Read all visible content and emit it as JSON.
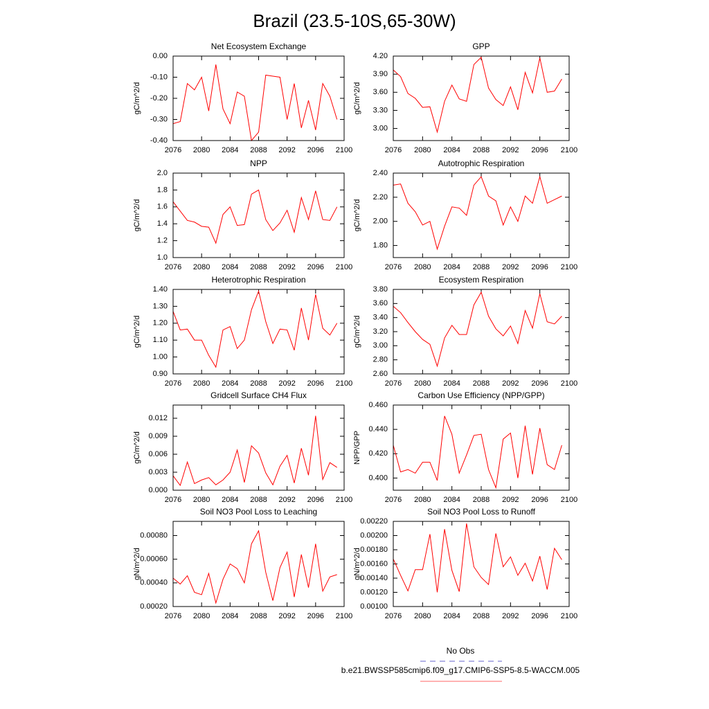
{
  "title": "Brazil (23.5-10S,65-30W)",
  "legend": [
    {
      "label": "No Obs",
      "color": "#6666cc",
      "dashed": true
    },
    {
      "label": "b.e21.BWSSP585cmip6.f09_g17.CMIP6-SSP5-8.5-WACCM.005",
      "color": "#ff6666",
      "dashed": false
    }
  ],
  "chart_data": [
    {
      "type": "line",
      "title": "Net Ecosystem Exchange",
      "ylabel": "gC/m^2/d",
      "color": "#ff0000",
      "x": [
        2076,
        2077,
        2078,
        2079,
        2080,
        2081,
        2082,
        2083,
        2084,
        2085,
        2086,
        2087,
        2088,
        2089,
        2090,
        2091,
        2092,
        2093,
        2094,
        2095,
        2096,
        2097,
        2098,
        2099
      ],
      "values": [
        -0.32,
        -0.31,
        -0.13,
        -0.16,
        -0.1,
        -0.26,
        -0.04,
        -0.25,
        -0.32,
        -0.17,
        -0.19,
        -0.4,
        -0.36,
        -0.09,
        -0.095,
        -0.1,
        -0.3,
        -0.13,
        -0.34,
        -0.21,
        -0.35,
        -0.13,
        -0.19,
        -0.3
      ],
      "xlim": [
        2076,
        2100
      ],
      "xticks": [
        2076,
        2080,
        2084,
        2088,
        2092,
        2096,
        2100
      ],
      "ylim": [
        -0.4,
        0
      ],
      "yticks": [
        {
          "value": -0.4,
          "label": "-0.40"
        },
        {
          "value": -0.3,
          "label": "-0.30"
        },
        {
          "value": -0.2,
          "label": "-0.20"
        },
        {
          "value": -0.1,
          "label": "-0.10"
        },
        {
          "value": 0,
          "label": "0.00"
        }
      ]
    },
    {
      "type": "line",
      "title": "GPP",
      "ylabel": "gC/m^2/d",
      "color": "#ff0000",
      "x": [
        2076,
        2077,
        2078,
        2079,
        2080,
        2081,
        2082,
        2083,
        2084,
        2085,
        2086,
        2087,
        2088,
        2089,
        2090,
        2091,
        2092,
        2093,
        2094,
        2095,
        2096,
        2097,
        2098,
        2099
      ],
      "values": [
        3.97,
        3.86,
        3.58,
        3.5,
        3.35,
        3.36,
        2.94,
        3.45,
        3.72,
        3.49,
        3.45,
        4.06,
        4.18,
        3.67,
        3.48,
        3.38,
        3.69,
        3.31,
        3.93,
        3.59,
        4.17,
        3.6,
        3.62,
        3.82
      ],
      "xlim": [
        2076,
        2100
      ],
      "xticks": [
        2076,
        2080,
        2084,
        2088,
        2092,
        2096,
        2100
      ],
      "ylim": [
        2.8,
        4.2
      ],
      "yticks": [
        {
          "value": 3.0,
          "label": "3.00"
        },
        {
          "value": 3.3,
          "label": "3.30"
        },
        {
          "value": 3.6,
          "label": "3.60"
        },
        {
          "value": 3.9,
          "label": "3.90"
        },
        {
          "value": 4.2,
          "label": "4.20"
        }
      ]
    },
    {
      "type": "line",
      "title": "NPP",
      "ylabel": "gC/m^2/d",
      "color": "#ff0000",
      "x": [
        2076,
        2077,
        2078,
        2079,
        2080,
        2081,
        2082,
        2083,
        2084,
        2085,
        2086,
        2087,
        2088,
        2089,
        2090,
        2091,
        2092,
        2093,
        2094,
        2095,
        2096,
        2097,
        2098,
        2099
      ],
      "values": [
        1.66,
        1.55,
        1.44,
        1.42,
        1.37,
        1.36,
        1.17,
        1.51,
        1.6,
        1.38,
        1.39,
        1.75,
        1.8,
        1.45,
        1.32,
        1.41,
        1.56,
        1.3,
        1.71,
        1.45,
        1.79,
        1.45,
        1.44,
        1.6
      ],
      "xlim": [
        2076,
        2100
      ],
      "xticks": [
        2076,
        2080,
        2084,
        2088,
        2092,
        2096,
        2100
      ],
      "ylim": [
        1.0,
        2.0
      ],
      "yticks": [
        {
          "value": 1.0,
          "label": "1.0"
        },
        1.2,
        1.4,
        1.6,
        1.8,
        {
          "value": 2.0,
          "label": "2.0"
        }
      ]
    },
    {
      "type": "line",
      "title": "Autotrophic Respiration",
      "ylabel": "gC/m^2/d",
      "color": "#ff0000",
      "x": [
        2076,
        2077,
        2078,
        2079,
        2080,
        2081,
        2082,
        2083,
        2084,
        2085,
        2086,
        2087,
        2088,
        2089,
        2090,
        2091,
        2092,
        2093,
        2094,
        2095,
        2096,
        2097,
        2098,
        2099
      ],
      "values": [
        2.3,
        2.31,
        2.15,
        2.08,
        1.97,
        2.0,
        1.77,
        1.96,
        2.12,
        2.11,
        2.05,
        2.3,
        2.37,
        2.21,
        2.17,
        1.97,
        2.12,
        2.0,
        2.21,
        2.15,
        2.37,
        2.15,
        2.18,
        2.21
      ],
      "xlim": [
        2076,
        2100
      ],
      "xticks": [
        2076,
        2080,
        2084,
        2088,
        2092,
        2096,
        2100
      ],
      "ylim": [
        1.7,
        2.4
      ],
      "yticks": [
        {
          "value": 1.8,
          "label": "1.80"
        },
        {
          "value": 2.0,
          "label": "2.00"
        },
        {
          "value": 2.2,
          "label": "2.20"
        },
        {
          "value": 2.4,
          "label": "2.40"
        }
      ]
    },
    {
      "type": "line",
      "title": "Heterotrophic Respiration",
      "ylabel": "gC/m^2/d",
      "color": "#ff0000",
      "x": [
        2076,
        2077,
        2078,
        2079,
        2080,
        2081,
        2082,
        2083,
        2084,
        2085,
        2086,
        2087,
        2088,
        2089,
        2090,
        2091,
        2092,
        2093,
        2094,
        2095,
        2096,
        2097,
        2098,
        2099
      ],
      "values": [
        1.27,
        1.16,
        1.165,
        1.1,
        1.1,
        1.01,
        0.94,
        1.16,
        1.18,
        1.05,
        1.1,
        1.28,
        1.39,
        1.21,
        1.08,
        1.165,
        1.16,
        1.04,
        1.29,
        1.1,
        1.37,
        1.17,
        1.13,
        1.2
      ],
      "xlim": [
        2076,
        2100
      ],
      "xticks": [
        2076,
        2080,
        2084,
        2088,
        2092,
        2096,
        2100
      ],
      "ylim": [
        0.9,
        1.4
      ],
      "yticks": [
        {
          "value": 0.9,
          "label": "0.90"
        },
        {
          "value": 1.0,
          "label": "1.00"
        },
        {
          "value": 1.1,
          "label": "1.10"
        },
        {
          "value": 1.2,
          "label": "1.20"
        },
        {
          "value": 1.3,
          "label": "1.30"
        },
        {
          "value": 1.4,
          "label": "1.40"
        }
      ]
    },
    {
      "type": "line",
      "title": "Ecosystem Respiration",
      "ylabel": "gC/m^2/d",
      "color": "#ff0000",
      "x": [
        2076,
        2077,
        2078,
        2079,
        2080,
        2081,
        2082,
        2083,
        2084,
        2085,
        2086,
        2087,
        2088,
        2089,
        2090,
        2091,
        2092,
        2093,
        2094,
        2095,
        2096,
        2097,
        2098,
        2099
      ],
      "values": [
        3.56,
        3.47,
        3.33,
        3.2,
        3.09,
        3.02,
        2.71,
        3.11,
        3.29,
        3.16,
        3.16,
        3.58,
        3.76,
        3.42,
        3.24,
        3.14,
        3.28,
        3.03,
        3.5,
        3.25,
        3.74,
        3.34,
        3.31,
        3.42
      ],
      "xlim": [
        2076,
        2100
      ],
      "xticks": [
        2076,
        2080,
        2084,
        2088,
        2092,
        2096,
        2100
      ],
      "ylim": [
        2.6,
        3.8
      ],
      "yticks": [
        {
          "value": 2.6,
          "label": "2.60"
        },
        {
          "value": 2.8,
          "label": "2.80"
        },
        {
          "value": 3.0,
          "label": "3.00"
        },
        {
          "value": 3.2,
          "label": "3.20"
        },
        {
          "value": 3.4,
          "label": "3.40"
        },
        {
          "value": 3.6,
          "label": "3.60"
        },
        {
          "value": 3.8,
          "label": "3.80"
        }
      ]
    },
    {
      "type": "line",
      "title": "Gridcell Surface CH4 Flux",
      "ylabel": "gC/m^2/d",
      "color": "#ff0000",
      "x": [
        2076,
        2077,
        2078,
        2079,
        2080,
        2081,
        2082,
        2083,
        2084,
        2085,
        2086,
        2087,
        2088,
        2089,
        2090,
        2091,
        2092,
        2093,
        2094,
        2095,
        2096,
        2097,
        2098,
        2099
      ],
      "values": [
        0.0024,
        0.0008,
        0.0047,
        0.0011,
        0.0017,
        0.0021,
        0.0009,
        0.0017,
        0.003,
        0.0067,
        0.0013,
        0.0074,
        0.0062,
        0.0029,
        0.0009,
        0.004,
        0.0058,
        0.0012,
        0.007,
        0.0025,
        0.0124,
        0.0018,
        0.0046,
        0.0038
      ],
      "xlim": [
        2076,
        2100
      ],
      "xticks": [
        2076,
        2080,
        2084,
        2088,
        2092,
        2096,
        2100
      ],
      "ylim": [
        0,
        0.0142
      ],
      "yticks": [
        {
          "value": 0,
          "label": "0.000"
        },
        0.003,
        0.006,
        0.009,
        0.012
      ]
    },
    {
      "type": "line",
      "title": "Carbon Use Efficiency (NPP/GPP)",
      "ylabel": "NPP/GPP",
      "color": "#ff0000",
      "x": [
        2076,
        2077,
        2078,
        2079,
        2080,
        2081,
        2082,
        2083,
        2084,
        2085,
        2086,
        2087,
        2088,
        2089,
        2090,
        2091,
        2092,
        2093,
        2094,
        2095,
        2096,
        2097,
        2098,
        2099
      ],
      "values": [
        0.427,
        0.405,
        0.407,
        0.404,
        0.413,
        0.413,
        0.398,
        0.451,
        0.436,
        0.404,
        0.419,
        0.435,
        0.436,
        0.407,
        0.392,
        0.432,
        0.437,
        0.4,
        0.443,
        0.403,
        0.441,
        0.411,
        0.407,
        0.427
      ],
      "xlim": [
        2076,
        2100
      ],
      "xticks": [
        2076,
        2080,
        2084,
        2088,
        2092,
        2096,
        2100
      ],
      "ylim": [
        0.39,
        0.46
      ],
      "yticks": [
        {
          "value": 0.4,
          "label": "0.400"
        },
        {
          "value": 0.42,
          "label": "0.420"
        },
        {
          "value": 0.44,
          "label": "0.440"
        },
        {
          "value": 0.46,
          "label": "0.460"
        }
      ]
    },
    {
      "type": "line",
      "title": "Soil NO3 Pool Loss to Leaching",
      "ylabel": "gN/m^2/d",
      "color": "#ff0000",
      "x": [
        2076,
        2077,
        2078,
        2079,
        2080,
        2081,
        2082,
        2083,
        2084,
        2085,
        2086,
        2087,
        2088,
        2089,
        2090,
        2091,
        2092,
        2093,
        2094,
        2095,
        2096,
        2097,
        2098,
        2099
      ],
      "values": [
        0.00044,
        0.00039,
        0.00046,
        0.00032,
        0.0003,
        0.00048,
        0.00023,
        0.00043,
        0.00056,
        0.00052,
        0.0004,
        0.00073,
        0.00084,
        0.00049,
        0.00025,
        0.00053,
        0.00066,
        0.00028,
        0.00064,
        0.00036,
        0.00073,
        0.00033,
        0.00045,
        0.00047
      ],
      "xlim": [
        2076,
        2100
      ],
      "xticks": [
        2076,
        2080,
        2084,
        2088,
        2092,
        2096,
        2100
      ],
      "ylim": [
        0.0002,
        0.00092
      ],
      "yticks": [
        {
          "value": 0.0002,
          "label": "0.00020"
        },
        {
          "value": 0.0004,
          "label": "0.00040"
        },
        {
          "value": 0.0006,
          "label": "0.00060"
        },
        {
          "value": 0.0008,
          "label": "0.00080"
        }
      ]
    },
    {
      "type": "line",
      "title": "Soil NO3 Pool Loss to Runoff",
      "ylabel": "gN/m^2/d",
      "color": "#ff0000",
      "x": [
        2076,
        2077,
        2078,
        2079,
        2080,
        2081,
        2082,
        2083,
        2084,
        2085,
        2086,
        2087,
        2088,
        2089,
        2090,
        2091,
        2092,
        2093,
        2094,
        2095,
        2096,
        2097,
        2098,
        2099
      ],
      "values": [
        0.00167,
        0.00144,
        0.00122,
        0.00152,
        0.00152,
        0.00202,
        0.0012,
        0.00209,
        0.00151,
        0.00121,
        0.00217,
        0.00156,
        0.00141,
        0.00131,
        0.00203,
        0.00156,
        0.0017,
        0.00144,
        0.00161,
        0.00136,
        0.00171,
        0.00124,
        0.00182,
        0.00166
      ],
      "xlim": [
        2076,
        2100
      ],
      "xticks": [
        2076,
        2080,
        2084,
        2088,
        2092,
        2096,
        2100
      ],
      "ylim": [
        0.001,
        0.0022
      ],
      "yticks": [
        {
          "value": 0.001,
          "label": "0.00100"
        },
        {
          "value": 0.0012,
          "label": "0.00120"
        },
        {
          "value": 0.0014,
          "label": "0.00140"
        },
        {
          "value": 0.0016,
          "label": "0.00160"
        },
        {
          "value": 0.0018,
          "label": "0.00180"
        },
        {
          "value": 0.002,
          "label": "0.00200"
        },
        {
          "value": 0.0022,
          "label": "0.00220"
        }
      ]
    }
  ]
}
